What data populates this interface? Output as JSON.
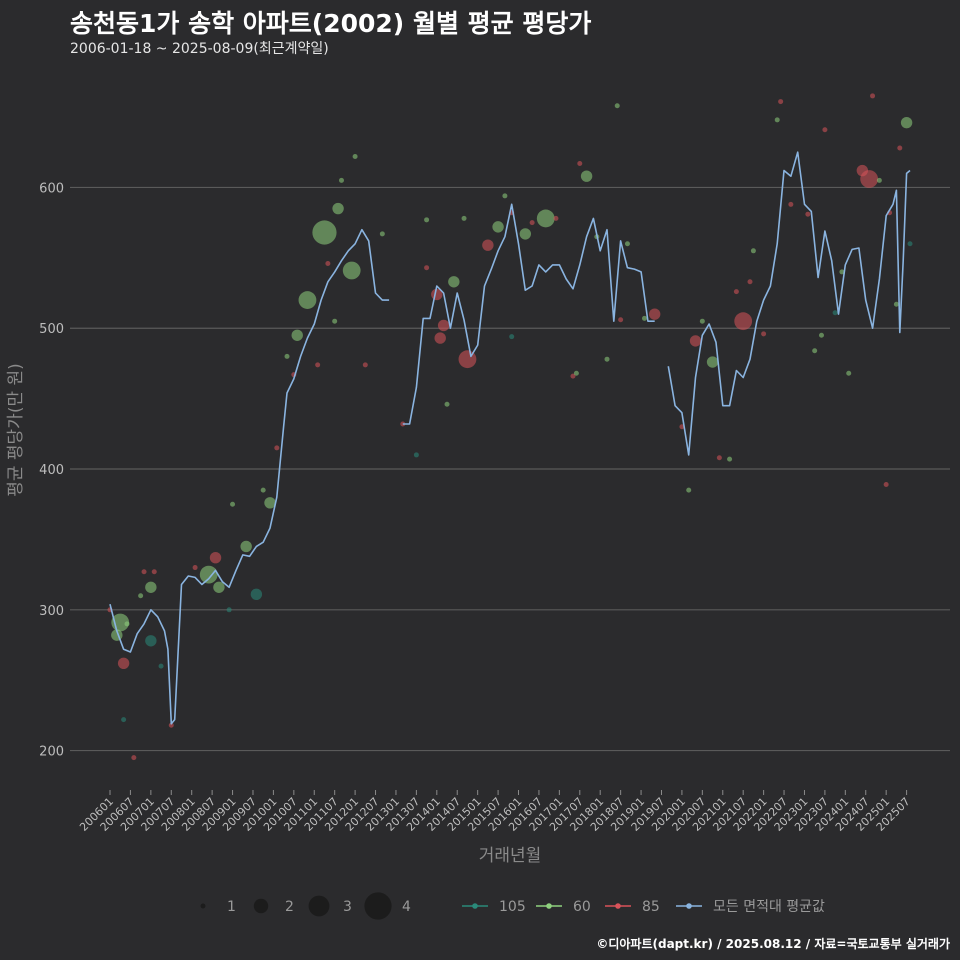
{
  "header": {
    "title": "송천동1가 송학 아파트(2002) 월별 평균 평당가",
    "subtitle": "2006-01-18 ~ 2025-08-09(최근계약일)"
  },
  "footer": {
    "credit": "©디아파트(dapt.kr) / 2025.08.12 / 자료=국토교통부 실거래가"
  },
  "colors": {
    "background": "#2b2b2d",
    "grid": "#5a5a5a",
    "s105": "#2a8a7a",
    "s60": "#8fd17e",
    "s85": "#d9535a",
    "avg": "#8ab4e0"
  },
  "chart_data": {
    "type": "line+scatter",
    "xlabel": "거래년월",
    "ylabel": "평균 평당가(만 원)",
    "ylim": [
      172,
      682
    ],
    "yticks": [
      200,
      300,
      400,
      500,
      600
    ],
    "x_start": "2006-01",
    "x_end": "2025-08",
    "xticks": [
      "200601",
      "200607",
      "200701",
      "200707",
      "200801",
      "200807",
      "200901",
      "200907",
      "201001",
      "201007",
      "201101",
      "201107",
      "201201",
      "201207",
      "201301",
      "201307",
      "201401",
      "201407",
      "201501",
      "201507",
      "201601",
      "201607",
      "201701",
      "201707",
      "201801",
      "201807",
      "201901",
      "201907",
      "202001",
      "202007",
      "202101",
      "202107",
      "202201",
      "202207",
      "202301",
      "202307",
      "202401",
      "202407",
      "202501",
      "202507"
    ],
    "size_legend": {
      "labels": [
        "1",
        "2",
        "3",
        "4"
      ]
    },
    "series_legend": [
      "105",
      "60",
      "85",
      "모든 면적대 평균값"
    ],
    "average_line": [
      [
        "2006-01",
        304
      ],
      [
        "2006-03",
        285
      ],
      [
        "2006-05",
        272
      ],
      [
        "2006-07",
        270
      ],
      [
        "2006-09",
        283
      ],
      [
        "2006-11",
        290
      ],
      [
        "2007-01",
        300
      ],
      [
        "2007-03",
        295
      ],
      [
        "2007-05",
        285
      ],
      [
        "2007-06",
        272
      ],
      [
        "2007-07",
        219
      ],
      [
        "2007-08",
        222
      ],
      [
        "2007-10",
        318
      ],
      [
        "2007-12",
        324
      ],
      [
        "2008-02",
        323
      ],
      [
        "2008-04",
        318
      ],
      [
        "2008-06",
        322
      ],
      [
        "2008-08",
        328
      ],
      [
        "2008-10",
        320
      ],
      [
        "2008-12",
        316
      ],
      [
        "2009-02",
        328
      ],
      [
        "2009-04",
        339
      ],
      [
        "2009-06",
        338
      ],
      [
        "2009-08",
        345
      ],
      [
        "2009-10",
        348
      ],
      [
        "2009-12",
        358
      ],
      [
        "2010-02",
        380
      ],
      [
        "2010-04",
        430
      ],
      [
        "2010-05",
        454
      ],
      [
        "2010-07",
        464
      ],
      [
        "2010-09",
        480
      ],
      [
        "2010-11",
        493
      ],
      [
        "2011-01",
        503
      ],
      [
        "2011-03",
        520
      ],
      [
        "2011-05",
        533
      ],
      [
        "2011-07",
        540
      ],
      [
        "2011-09",
        548
      ],
      [
        "2011-11",
        555
      ],
      [
        "2012-01",
        560
      ],
      [
        "2012-03",
        570
      ],
      [
        "2012-05",
        562
      ],
      [
        "2012-07",
        525
      ],
      [
        "2012-09",
        520
      ],
      [
        "2012-11",
        520
      ],
      null,
      [
        "2013-03",
        432
      ],
      [
        "2013-05",
        432
      ],
      [
        "2013-07",
        458
      ],
      [
        "2013-09",
        507
      ],
      [
        "2013-11",
        507
      ],
      [
        "2014-01",
        530
      ],
      [
        "2014-03",
        525
      ],
      [
        "2014-05",
        500
      ],
      [
        "2014-07",
        525
      ],
      [
        "2014-09",
        506
      ],
      [
        "2014-11",
        480
      ],
      [
        "2015-01",
        488
      ],
      [
        "2015-03",
        530
      ],
      [
        "2015-05",
        542
      ],
      [
        "2015-07",
        555
      ],
      [
        "2015-09",
        565
      ],
      [
        "2015-11",
        588
      ],
      [
        "2016-01",
        560
      ],
      [
        "2016-03",
        527
      ],
      [
        "2016-05",
        530
      ],
      [
        "2016-07",
        545
      ],
      [
        "2016-09",
        540
      ],
      [
        "2016-11",
        545
      ],
      [
        "2017-01",
        545
      ],
      [
        "2017-03",
        535
      ],
      [
        "2017-05",
        528
      ],
      [
        "2017-07",
        545
      ],
      [
        "2017-09",
        565
      ],
      [
        "2017-11",
        578
      ],
      [
        "2018-01",
        555
      ],
      [
        "2018-03",
        570
      ],
      [
        "2018-05",
        505
      ],
      [
        "2018-07",
        562
      ],
      [
        "2018-09",
        543
      ],
      [
        "2018-11",
        542
      ],
      [
        "2019-01",
        540
      ],
      [
        "2019-03",
        505
      ],
      [
        "2019-05",
        505
      ],
      null,
      [
        "2019-09",
        473
      ],
      [
        "2019-11",
        445
      ],
      [
        "2020-01",
        440
      ],
      [
        "2020-03",
        410
      ],
      [
        "2020-05",
        465
      ],
      [
        "2020-07",
        495
      ],
      [
        "2020-09",
        503
      ],
      [
        "2020-11",
        490
      ],
      [
        "2021-01",
        445
      ],
      [
        "2021-03",
        445
      ],
      [
        "2021-05",
        470
      ],
      [
        "2021-07",
        465
      ],
      [
        "2021-09",
        478
      ],
      [
        "2021-11",
        505
      ],
      [
        "2022-01",
        520
      ],
      [
        "2022-03",
        530
      ],
      [
        "2022-05",
        560
      ],
      [
        "2022-07",
        612
      ],
      [
        "2022-09",
        608
      ],
      [
        "2022-11",
        625
      ],
      [
        "2023-01",
        588
      ],
      [
        "2023-03",
        583
      ],
      [
        "2023-05",
        536
      ],
      [
        "2023-07",
        569
      ],
      [
        "2023-09",
        548
      ],
      [
        "2023-11",
        510
      ],
      [
        "2024-01",
        545
      ],
      [
        "2024-03",
        556
      ],
      [
        "2024-05",
        557
      ],
      [
        "2024-07",
        520
      ],
      [
        "2024-09",
        500
      ],
      [
        "2024-11",
        535
      ],
      [
        "2025-01",
        580
      ],
      [
        "2025-03",
        588
      ],
      [
        "2025-04",
        598
      ],
      [
        "2025-05",
        497
      ],
      [
        "2025-06",
        548
      ],
      [
        "2025-07",
        610
      ],
      [
        "2025-08",
        612
      ]
    ],
    "points": [
      [
        "85",
        "2006-01",
        300,
        1
      ],
      [
        "60",
        "2006-03",
        282,
        2
      ],
      [
        "60",
        "2006-04",
        291,
        3
      ],
      [
        "105",
        "2006-05",
        222,
        1
      ],
      [
        "85",
        "2006-05",
        262,
        2
      ],
      [
        "60",
        "2006-06",
        290,
        1
      ],
      [
        "85",
        "2006-08",
        195,
        1
      ],
      [
        "60",
        "2006-10",
        310,
        1
      ],
      [
        "85",
        "2006-11",
        327,
        1
      ],
      [
        "60",
        "2007-01",
        316,
        2
      ],
      [
        "105",
        "2007-01",
        278,
        2
      ],
      [
        "85",
        "2007-02",
        327,
        1
      ],
      [
        "105",
        "2007-04",
        260,
        1
      ],
      [
        "85",
        "2007-07",
        218,
        1
      ],
      [
        "85",
        "2008-02",
        330,
        1
      ],
      [
        "60",
        "2008-06",
        325,
        3
      ],
      [
        "85",
        "2008-08",
        337,
        2
      ],
      [
        "60",
        "2008-09",
        316,
        2
      ],
      [
        "105",
        "2008-12",
        300,
        1
      ],
      [
        "60",
        "2009-01",
        375,
        1
      ],
      [
        "60",
        "2009-05",
        345,
        2
      ],
      [
        "105",
        "2009-08",
        311,
        2
      ],
      [
        "60",
        "2009-10",
        385,
        1
      ],
      [
        "60",
        "2009-12",
        376,
        2
      ],
      [
        "85",
        "2010-02",
        415,
        1
      ],
      [
        "60",
        "2010-05",
        480,
        1
      ],
      [
        "85",
        "2010-07",
        467,
        1
      ],
      [
        "60",
        "2010-08",
        495,
        2
      ],
      [
        "60",
        "2010-11",
        520,
        3
      ],
      [
        "85",
        "2011-02",
        474,
        1
      ],
      [
        "60",
        "2011-04",
        568,
        4
      ],
      [
        "85",
        "2011-05",
        546,
        1
      ],
      [
        "60",
        "2011-07",
        505,
        1
      ],
      [
        "60",
        "2011-08",
        585,
        2
      ],
      [
        "60",
        "2011-09",
        605,
        1
      ],
      [
        "60",
        "2011-12",
        541,
        3
      ],
      [
        "60",
        "2012-01",
        622,
        1
      ],
      [
        "85",
        "2012-04",
        474,
        1
      ],
      [
        "60",
        "2012-09",
        567,
        1
      ],
      [
        "85",
        "2013-03",
        432,
        1
      ],
      [
        "105",
        "2013-07",
        410,
        1
      ],
      [
        "85",
        "2013-10",
        543,
        1
      ],
      [
        "60",
        "2013-10",
        577,
        1
      ],
      [
        "85",
        "2014-01",
        524,
        2
      ],
      [
        "85",
        "2014-02",
        493,
        2
      ],
      [
        "85",
        "2014-03",
        502,
        2
      ],
      [
        "60",
        "2014-04",
        446,
        1
      ],
      [
        "60",
        "2014-06",
        533,
        2
      ],
      [
        "60",
        "2014-09",
        578,
        1
      ],
      [
        "85",
        "2014-10",
        478,
        3
      ],
      [
        "85",
        "2015-04",
        559,
        2
      ],
      [
        "60",
        "2015-07",
        572,
        2
      ],
      [
        "60",
        "2015-09",
        594,
        1
      ],
      [
        "105",
        "2015-11",
        494,
        1
      ],
      [
        "85",
        "2015-11",
        582,
        1
      ],
      [
        "60",
        "2016-03",
        567,
        2
      ],
      [
        "85",
        "2016-05",
        575,
        1
      ],
      [
        "60",
        "2016-09",
        578,
        3
      ],
      [
        "85",
        "2016-12",
        578,
        1
      ],
      [
        "85",
        "2017-05",
        466,
        1
      ],
      [
        "60",
        "2017-06",
        468,
        1
      ],
      [
        "85",
        "2017-07",
        617,
        1
      ],
      [
        "60",
        "2017-09",
        608,
        2
      ],
      [
        "60",
        "2017-12",
        565,
        1
      ],
      [
        "60",
        "2018-03",
        478,
        1
      ],
      [
        "60",
        "2018-06",
        658,
        1
      ],
      [
        "85",
        "2018-07",
        506,
        1
      ],
      [
        "60",
        "2018-09",
        560,
        1
      ],
      [
        "60",
        "2019-02",
        507,
        1
      ],
      [
        "85",
        "2019-05",
        510,
        2
      ],
      [
        "85",
        "2020-01",
        430,
        1
      ],
      [
        "60",
        "2020-03",
        385,
        1
      ],
      [
        "85",
        "2020-05",
        491,
        2
      ],
      [
        "60",
        "2020-07",
        505,
        1
      ],
      [
        "60",
        "2020-10",
        476,
        2
      ],
      [
        "85",
        "2020-12",
        408,
        1
      ],
      [
        "60",
        "2021-03",
        407,
        1
      ],
      [
        "85",
        "2021-05",
        526,
        1
      ],
      [
        "85",
        "2021-07",
        505,
        3
      ],
      [
        "85",
        "2021-09",
        533,
        1
      ],
      [
        "60",
        "2021-10",
        555,
        1
      ],
      [
        "85",
        "2022-01",
        496,
        1
      ],
      [
        "60",
        "2022-05",
        648,
        1
      ],
      [
        "85",
        "2022-06",
        661,
        1
      ],
      [
        "85",
        "2022-09",
        588,
        1
      ],
      [
        "85",
        "2023-02",
        581,
        1
      ],
      [
        "60",
        "2023-04",
        484,
        1
      ],
      [
        "60",
        "2023-06",
        495,
        1
      ],
      [
        "85",
        "2023-07",
        641,
        1
      ],
      [
        "105",
        "2023-10",
        511,
        1
      ],
      [
        "60",
        "2023-12",
        540,
        1
      ],
      [
        "60",
        "2024-02",
        468,
        1
      ],
      [
        "85",
        "2024-06",
        612,
        2
      ],
      [
        "85",
        "2024-08",
        606,
        3
      ],
      [
        "85",
        "2024-09",
        665,
        1
      ],
      [
        "60",
        "2024-11",
        605,
        1
      ],
      [
        "85",
        "2025-01",
        389,
        1
      ],
      [
        "85",
        "2025-02",
        582,
        1
      ],
      [
        "60",
        "2025-04",
        517,
        1
      ],
      [
        "85",
        "2025-05",
        628,
        1
      ],
      [
        "60",
        "2025-07",
        646,
        2
      ],
      [
        "105",
        "2025-08",
        560,
        1
      ]
    ]
  }
}
